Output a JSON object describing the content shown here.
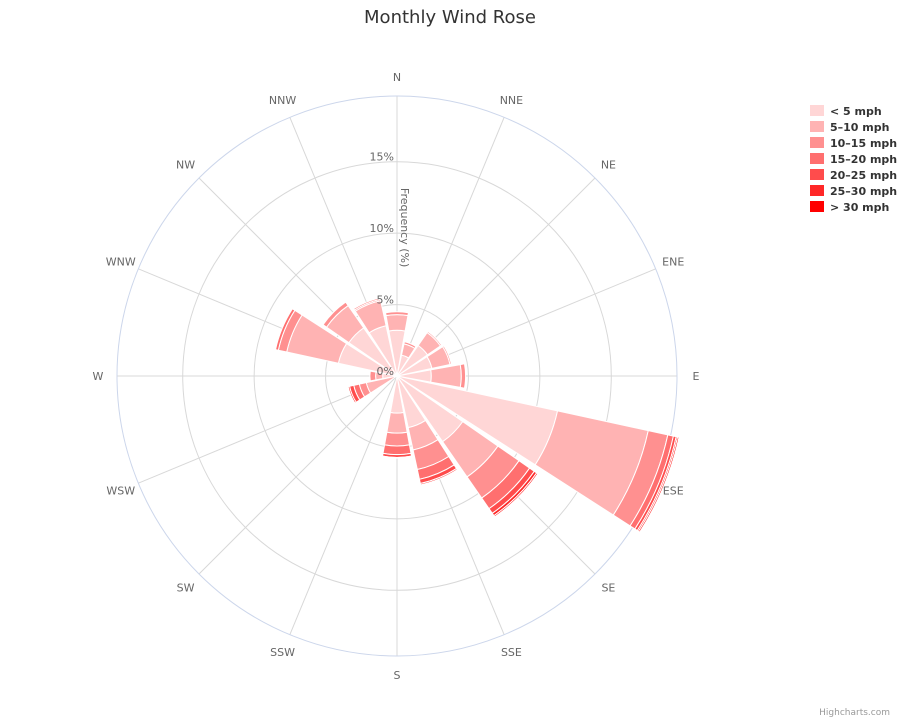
{
  "chart_data": {
    "type": "bar",
    "subtype": "stacked-polar",
    "title": "Monthly Wind Rose",
    "categories": [
      "N",
      "NNE",
      "NE",
      "ENE",
      "E",
      "ESE",
      "SE",
      "SSE",
      "S",
      "SSW",
      "SW",
      "WSW",
      "W",
      "WNW",
      "NW",
      "NNW"
    ],
    "y_axis": {
      "title": "Frequency (%)",
      "ticks": [
        "0%",
        "5%",
        "10%",
        "15%"
      ],
      "min": 0,
      "max": 19.6
    },
    "legend_position": "right",
    "grid": true,
    "series": [
      {
        "name": "< 5 mph",
        "color": "#ffd6d6",
        "values": [
          3.2,
          1.5,
          2.6,
          2.5,
          2.4,
          11.5,
          5.6,
          3.7,
          2.6,
          0.0,
          0.0,
          0.0,
          1.0,
          4.2,
          4.1,
          3.6
        ]
      },
      {
        "name": "5–10 mph",
        "color": "#ffb3b3",
        "values": [
          1.1,
          0.8,
          1.1,
          1.3,
          2.1,
          6.5,
          3.0,
          1.6,
          1.4,
          0.0,
          0.0,
          2.2,
          0.5,
          3.7,
          1.9,
          1.8
        ]
      },
      {
        "name": "10–15 mph",
        "color": "#ff9090",
        "values": [
          0.2,
          0.15,
          0.1,
          0.1,
          0.3,
          1.4,
          1.8,
          1.4,
          0.9,
          0.0,
          0.0,
          0.5,
          0.4,
          0.6,
          0.3,
          0.1
        ]
      },
      {
        "name": "15–20 mph",
        "color": "#ff6f6f",
        "values": [
          0.0,
          0.0,
          0.0,
          0.0,
          0.0,
          0.4,
          0.9,
          0.7,
          0.6,
          0.0,
          0.0,
          0.4,
          0.0,
          0.2,
          0.0,
          0.1
        ]
      },
      {
        "name": "20–25 mph",
        "color": "#ff4c4c",
        "values": [
          0.0,
          0.0,
          0.0,
          0.0,
          0.0,
          0.2,
          0.4,
          0.3,
          0.2,
          0.0,
          0.0,
          0.3,
          0.0,
          0.0,
          0.0,
          0.0
        ]
      },
      {
        "name": "25–30 mph",
        "color": "#ff2727",
        "values": [
          0.0,
          0.0,
          0.0,
          0.0,
          0.0,
          0.1,
          0.2,
          0.1,
          0.05,
          0.0,
          0.0,
          0.1,
          0.0,
          0.0,
          0.0,
          0.0
        ]
      },
      {
        "name": "> 30 mph",
        "color": "#ff0000",
        "values": [
          0.0,
          0.0,
          0.0,
          0.0,
          0.0,
          0.1,
          0.1,
          0.0,
          0.0,
          0.0,
          0.0,
          0.0,
          0.0,
          0.0,
          0.0,
          0.0
        ]
      }
    ]
  },
  "credits": "Highcharts.com"
}
